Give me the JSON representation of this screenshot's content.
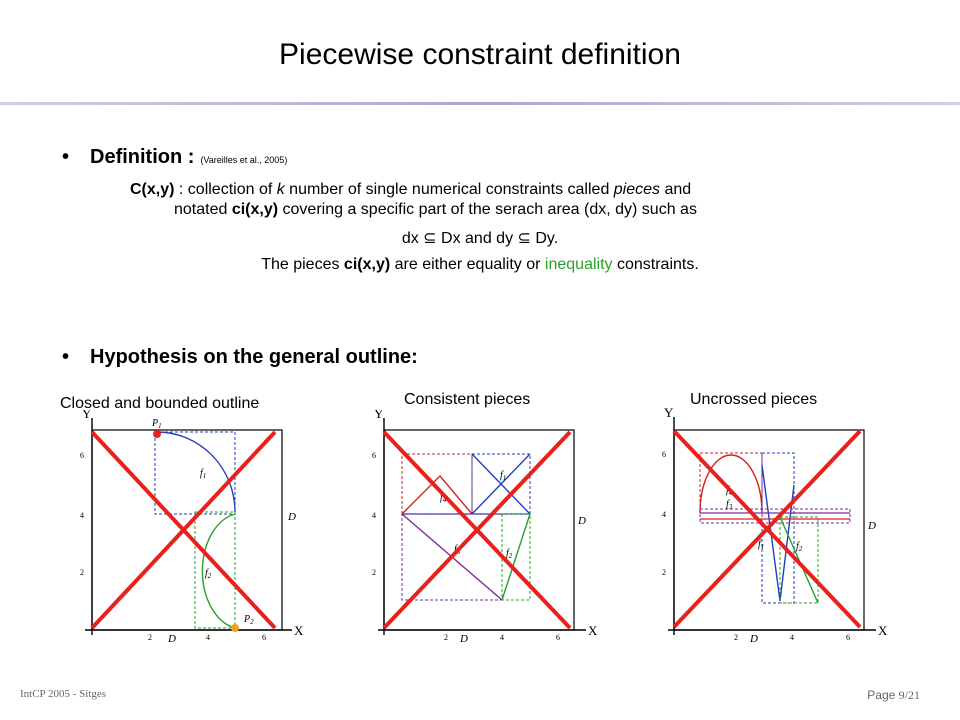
{
  "slide": {
    "title": "Piecewise constraint definition",
    "definition": {
      "bullet": "•",
      "heading": "Definition :",
      "citation": "(Vareilles et al., 2005)",
      "line1_a": "C(x,y)",
      "line1_b": " : collection of ",
      "line1_k": "k",
      "line1_c": " number of single numerical constraints called ",
      "line1_pieces": "pieces",
      "line1_d": " and",
      "line2_a": "notated ",
      "line2_ci": "ci(x,y)",
      "line2_b": " covering a specific part of the serach area (dx, dy) such as",
      "line3": "dx ⊆ Dx and dy ⊆ Dy.",
      "line4_a": "The pieces ",
      "line4_ci": "ci(x,y)",
      "line4_b": " are either equality or ",
      "line4_green": "inequality",
      "line4_c": " constraints."
    },
    "hypothesis": {
      "bullet": "•",
      "heading": "Hypothesis on the general outline:"
    },
    "figures": [
      {
        "caption": "Closed and bounded outline"
      },
      {
        "caption": "Consistent pieces"
      },
      {
        "caption": "Uncrossed pieces"
      }
    ],
    "axis": {
      "y": "Y",
      "x": "X",
      "ticks_y": [
        "6",
        "4",
        "2"
      ],
      "ticks_x": [
        "2",
        "4",
        "6"
      ],
      "dxc": "D",
      "dyc": "D"
    },
    "fig1_labels": {
      "p1": "P",
      "p1sub": "1",
      "p2": "P",
      "p2sub": "2",
      "f1": "f",
      "f1sub": "1",
      "f2": "f",
      "f2sub": "2"
    },
    "fig2_labels": {
      "f1": "f",
      "f1sub": "1",
      "f2": "f",
      "f2sub": "2",
      "f3": "f",
      "f3sub": "3",
      "f4": "f",
      "f4sub": "4"
    },
    "fig3_labels": {
      "f1": "f",
      "f1sub": "1",
      "f2": "f",
      "f2sub": "2",
      "f3": "f",
      "f3sub": "3",
      "f4": "f",
      "f4sub": "4"
    },
    "footer": {
      "left": "IntCP 2005 - Sitges",
      "right_prefix": "Page ",
      "right_num": "9/21"
    },
    "colors": {
      "cross": "#e8211d",
      "blue": "#1f3fbf",
      "green": "#2aa02a",
      "red": "#d62020",
      "purple": "#7a2a9a",
      "highlight_green": "#2aa02a"
    }
  }
}
